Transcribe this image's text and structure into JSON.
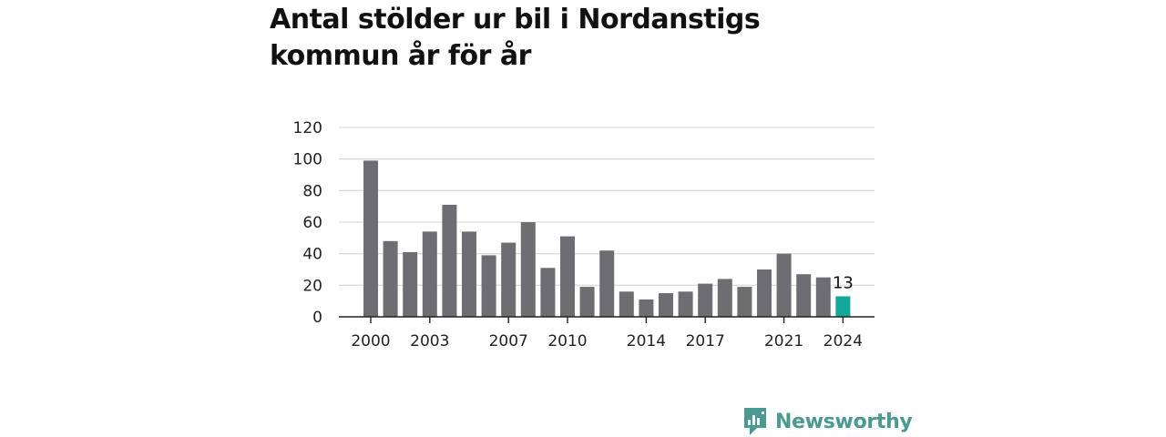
{
  "chart_data": {
    "type": "bar",
    "title": "Antal stölder ur bil i Nordanstigs kommun år för år",
    "xlabel": "",
    "ylabel": "",
    "categories": [
      "2000",
      "2001",
      "2002",
      "2003",
      "2004",
      "2005",
      "2006",
      "2007",
      "2008",
      "2009",
      "2010",
      "2011",
      "2012",
      "2013",
      "2014",
      "2015",
      "2016",
      "2017",
      "2018",
      "2019",
      "2020",
      "2021",
      "2022",
      "2023",
      "2024"
    ],
    "values": [
      99,
      48,
      41,
      54,
      71,
      54,
      39,
      47,
      60,
      31,
      51,
      19,
      42,
      16,
      11,
      15,
      16,
      21,
      24,
      19,
      30,
      40,
      27,
      25,
      13
    ],
    "ylim": [
      0,
      120
    ],
    "y_ticks": [
      0,
      20,
      40,
      60,
      80,
      100,
      120
    ],
    "x_tick_labels": [
      "2000",
      "2003",
      "2007",
      "2010",
      "2014",
      "2017",
      "2021",
      "2024"
    ],
    "highlight": {
      "category": "2024",
      "label": "13"
    },
    "grid": true,
    "colors": {
      "bar": "#6e6d72",
      "highlight": "#14a89a",
      "grid": "#dddddd",
      "axis": "#222222"
    }
  },
  "brand": {
    "name": "Newsworthy",
    "logo_icon": "newsworthy-chart-icon",
    "color": "#4a9a92"
  }
}
